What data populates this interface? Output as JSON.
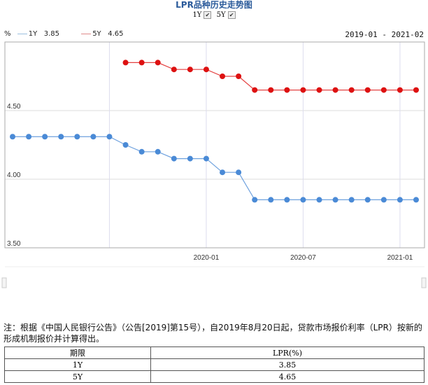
{
  "title": "LPR品种历史走势图",
  "toggles": [
    {
      "label": "1Y",
      "checked": true
    },
    {
      "label": "5Y",
      "checked": true
    }
  ],
  "legend": {
    "unit": "%",
    "items": [
      {
        "name": "1Y",
        "value": "3.85",
        "color": "#4a8ad6"
      },
      {
        "name": "5Y",
        "value": "4.65",
        "color": "#dd1111"
      }
    ]
  },
  "date_range": "2019-01 - 2021-02",
  "chart_data": {
    "type": "line",
    "x": [
      "2019-01",
      "2019-02",
      "2019-03",
      "2019-04",
      "2019-05",
      "2019-06",
      "2019-07",
      "2019-08",
      "2019-09",
      "2019-10",
      "2019-11",
      "2019-12",
      "2020-01",
      "2020-02",
      "2020-03",
      "2020-04",
      "2020-05",
      "2020-06",
      "2020-07",
      "2020-08",
      "2020-09",
      "2020-10",
      "2020-11",
      "2020-12",
      "2021-01",
      "2021-02"
    ],
    "xticks": [
      "2019-07",
      "2020-01",
      "2020-07",
      "2021-01"
    ],
    "xtick_labels": [
      "",
      "2020-01",
      "2020-07",
      "2021-01"
    ],
    "yticks": [
      "3.50",
      "4.00",
      "4.50"
    ],
    "ylim": [
      3.5,
      5.0
    ],
    "grid": true,
    "legend_position": "top-left",
    "series": [
      {
        "name": "1Y",
        "color": "#4a8ad6",
        "values": [
          4.31,
          4.31,
          4.31,
          4.31,
          4.31,
          4.31,
          4.31,
          4.25,
          4.2,
          4.2,
          4.15,
          4.15,
          4.15,
          4.05,
          4.05,
          3.85,
          3.85,
          3.85,
          3.85,
          3.85,
          3.85,
          3.85,
          3.85,
          3.85,
          3.85,
          3.85
        ]
      },
      {
        "name": "5Y",
        "color": "#dd1111",
        "values": [
          null,
          null,
          null,
          null,
          null,
          null,
          null,
          4.85,
          4.85,
          4.85,
          4.8,
          4.8,
          4.8,
          4.75,
          4.75,
          4.65,
          4.65,
          4.65,
          4.65,
          4.65,
          4.65,
          4.65,
          4.65,
          4.65,
          4.65,
          4.65
        ]
      }
    ]
  },
  "note": "注：根据《中国人民银行公告》（公告[2019]第15号），自2019年8月20日起，贷款市场报价利率（LPR）按新的形成机制报价并计算得出。",
  "table": {
    "headers": [
      "期限",
      "LPR(%)"
    ],
    "rows": [
      [
        "1Y",
        "3.85"
      ],
      [
        "5Y",
        "4.65"
      ]
    ]
  }
}
